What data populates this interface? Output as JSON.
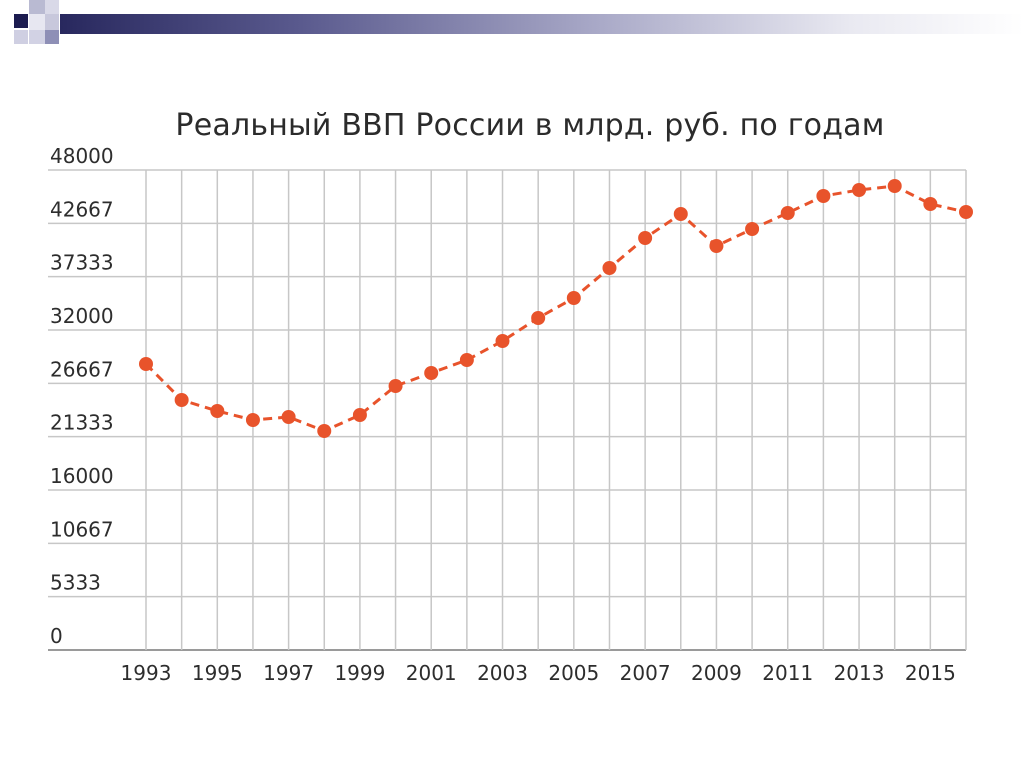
{
  "chart_data": {
    "type": "line",
    "title": "Реальный ВВП России в млрд. руб. по годам",
    "xlabel": "",
    "ylabel": "",
    "ylim": [
      0,
      48000
    ],
    "y_ticks": [
      "0",
      "5333",
      "10667",
      "16000",
      "21333",
      "26667",
      "32000",
      "37333",
      "42667",
      "48000"
    ],
    "x_tick_labels": [
      "1993",
      "1995",
      "1997",
      "1999",
      "2001",
      "2003",
      "2005",
      "2007",
      "2009",
      "2011",
      "2013",
      "2015"
    ],
    "grid": true,
    "line_color": "#e8532b",
    "series": [
      {
        "x": [
          1993,
          1994,
          1995,
          1996,
          1997,
          1998,
          1999,
          2000,
          2001,
          2002,
          2003,
          2004,
          2005,
          2006,
          2007,
          2008,
          2009,
          2010,
          2011,
          2012,
          2013,
          2014,
          2015,
          2016
        ],
        "values": [
          28600,
          25000,
          23900,
          23000,
          23300,
          21900,
          23500,
          26400,
          27700,
          29000,
          30900,
          33200,
          35200,
          38200,
          41200,
          43600,
          40400,
          42100,
          43700,
          45400,
          46000,
          46400,
          44600,
          43800
        ]
      }
    ]
  }
}
